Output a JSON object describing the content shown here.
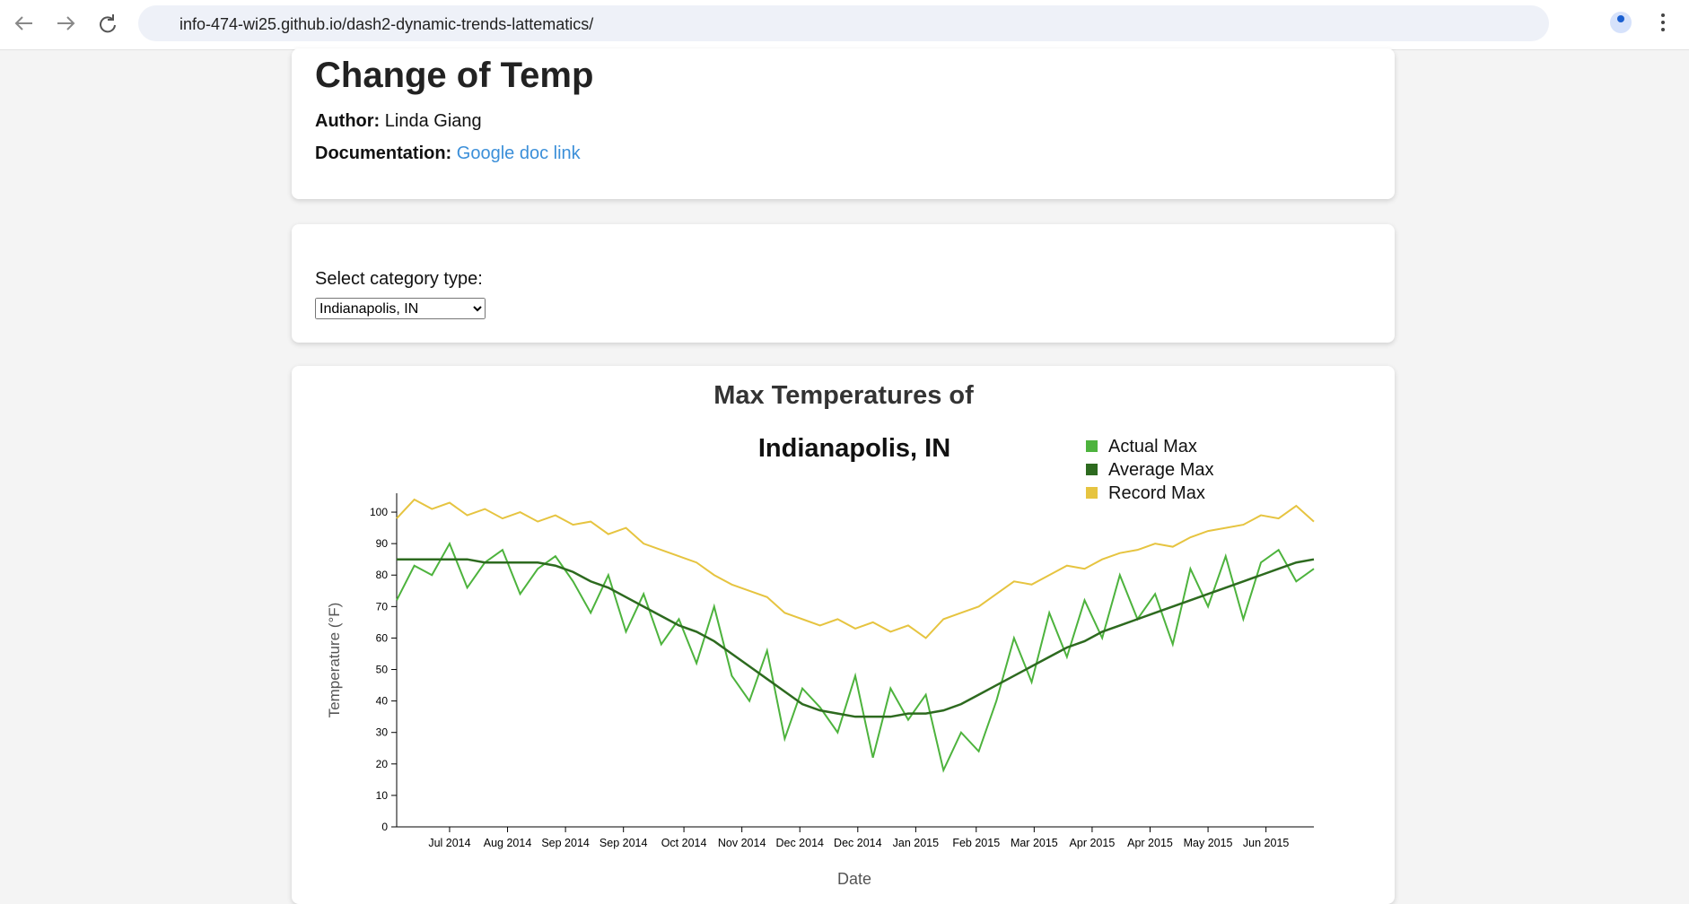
{
  "browser": {
    "url": "info-474-wi25.github.io/dash2-dynamic-trends-lattematics/"
  },
  "header": {
    "title": "Change of Temp",
    "author_label": "Author:",
    "author": "Linda Giang",
    "doc_label": "Documentation:",
    "doc_link": "Google doc link"
  },
  "controls": {
    "label": "Select category type:",
    "selected": "Indianapolis, IN"
  },
  "chart_data": {
    "type": "line",
    "title": "Max Temperatures of",
    "subtitle": "Indianapolis, IN",
    "x_label": "Date",
    "y_label": "Temperature (°F)",
    "legend": "upper right",
    "x": [
      0,
      7,
      14,
      21,
      28,
      35,
      42,
      49,
      56,
      63,
      70,
      77,
      84,
      91,
      98,
      105,
      112,
      119,
      126,
      133,
      140,
      147,
      154,
      161,
      168,
      175,
      182,
      189,
      196,
      203,
      210,
      217,
      224,
      231,
      238,
      245,
      252,
      259,
      266,
      273,
      280,
      287,
      294,
      301,
      308,
      315,
      322,
      329,
      336,
      343,
      350,
      357,
      364
    ],
    "xlim": [
      0,
      364
    ],
    "xticks": [
      {
        "value": 21,
        "label": "Jul 2014"
      },
      {
        "value": 44,
        "label": "Aug 2014"
      },
      {
        "value": 67,
        "label": "Sep 2014"
      },
      {
        "value": 90,
        "label": "Sep 2014"
      },
      {
        "value": 114,
        "label": "Oct 2014"
      },
      {
        "value": 137,
        "label": "Nov 2014"
      },
      {
        "value": 160,
        "label": "Dec 2014"
      },
      {
        "value": 183,
        "label": "Dec 2014"
      },
      {
        "value": 206,
        "label": "Jan 2015"
      },
      {
        "value": 230,
        "label": "Feb 2015"
      },
      {
        "value": 253,
        "label": "Mar 2015"
      },
      {
        "value": 276,
        "label": "Apr 2015"
      },
      {
        "value": 299,
        "label": "Apr 2015"
      },
      {
        "value": 322,
        "label": "May 2015"
      },
      {
        "value": 345,
        "label": "Jun 2015"
      }
    ],
    "ylim": [
      0,
      106
    ],
    "yticks": [
      0,
      10,
      20,
      30,
      40,
      50,
      60,
      70,
      80,
      90,
      100
    ],
    "series": [
      {
        "name": "Actual Max",
        "color": "#4db33d",
        "values": [
          72,
          83,
          80,
          90,
          76,
          84,
          88,
          74,
          82,
          86,
          78,
          68,
          80,
          62,
          74,
          58,
          66,
          52,
          70,
          48,
          40,
          56,
          28,
          44,
          38,
          30,
          48,
          22,
          44,
          34,
          42,
          18,
          30,
          24,
          40,
          60,
          46,
          68,
          54,
          72,
          60,
          80,
          66,
          74,
          58,
          82,
          70,
          86,
          66,
          84,
          88,
          78,
          82
        ]
      },
      {
        "name": "Average Max",
        "color": "#2d6a1f",
        "values": [
          85,
          85,
          85,
          85,
          85,
          84,
          84,
          84,
          84,
          83,
          81,
          78,
          76,
          73,
          70,
          67,
          64,
          62,
          59,
          55,
          51,
          47,
          43,
          39,
          37,
          36,
          35,
          35,
          35,
          36,
          36,
          37,
          39,
          42,
          45,
          48,
          51,
          54,
          57,
          59,
          62,
          64,
          66,
          68,
          70,
          72,
          74,
          76,
          78,
          80,
          82,
          84,
          85
        ]
      },
      {
        "name": "Record Max",
        "color": "#e6c440",
        "values": [
          98,
          104,
          101,
          103,
          99,
          101,
          98,
          100,
          97,
          99,
          96,
          97,
          93,
          95,
          90,
          88,
          86,
          84,
          80,
          77,
          75,
          73,
          68,
          66,
          64,
          66,
          63,
          65,
          62,
          64,
          60,
          66,
          68,
          70,
          74,
          78,
          77,
          80,
          83,
          82,
          85,
          87,
          88,
          90,
          89,
          92,
          94,
          95,
          96,
          99,
          98,
          102,
          97
        ]
      }
    ]
  }
}
